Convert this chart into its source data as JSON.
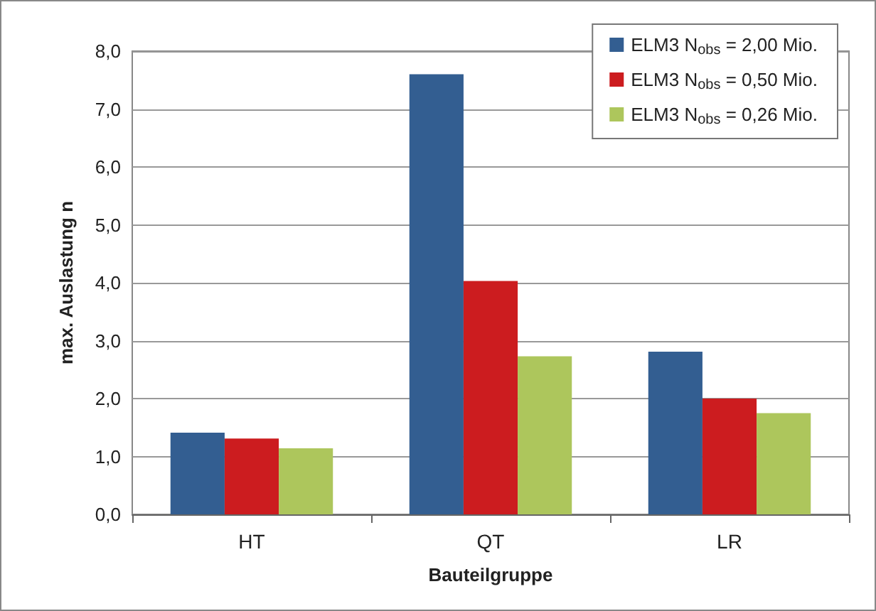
{
  "chart_data": {
    "type": "bar",
    "xlabel": "Bauteilgruppe",
    "ylabel": "max. Auslastung n",
    "categories": [
      "HT",
      "QT",
      "LR"
    ],
    "series": [
      {
        "name": "ELM3 N$_{obs}$ = 2,00 Mio.",
        "color": "#335e91",
        "values": [
          1.41,
          7.6,
          2.81
        ]
      },
      {
        "name": "ELM3 N$_{obs}$ = 0,50 Mio.",
        "color": "#cc1c1f",
        "values": [
          1.31,
          4.03,
          2.0
        ]
      },
      {
        "name": "ELM3 N$_{obs}$ = 0,26 Mio.",
        "color": "#adc65c",
        "values": [
          1.14,
          2.73,
          1.75
        ]
      }
    ],
    "ylim": [
      0,
      8
    ],
    "yticks": [
      {
        "value": 0,
        "label": "0,0"
      },
      {
        "value": 1,
        "label": "1,0"
      },
      {
        "value": 2,
        "label": "2,0"
      },
      {
        "value": 3,
        "label": "3,0"
      },
      {
        "value": 4,
        "label": "4,0"
      },
      {
        "value": 5,
        "label": "5,0"
      },
      {
        "value": 6,
        "label": "6,0"
      },
      {
        "value": 7,
        "label": "7,0"
      },
      {
        "value": 8,
        "label": "8,0"
      }
    ],
    "grid": "y",
    "legend": "top right"
  }
}
